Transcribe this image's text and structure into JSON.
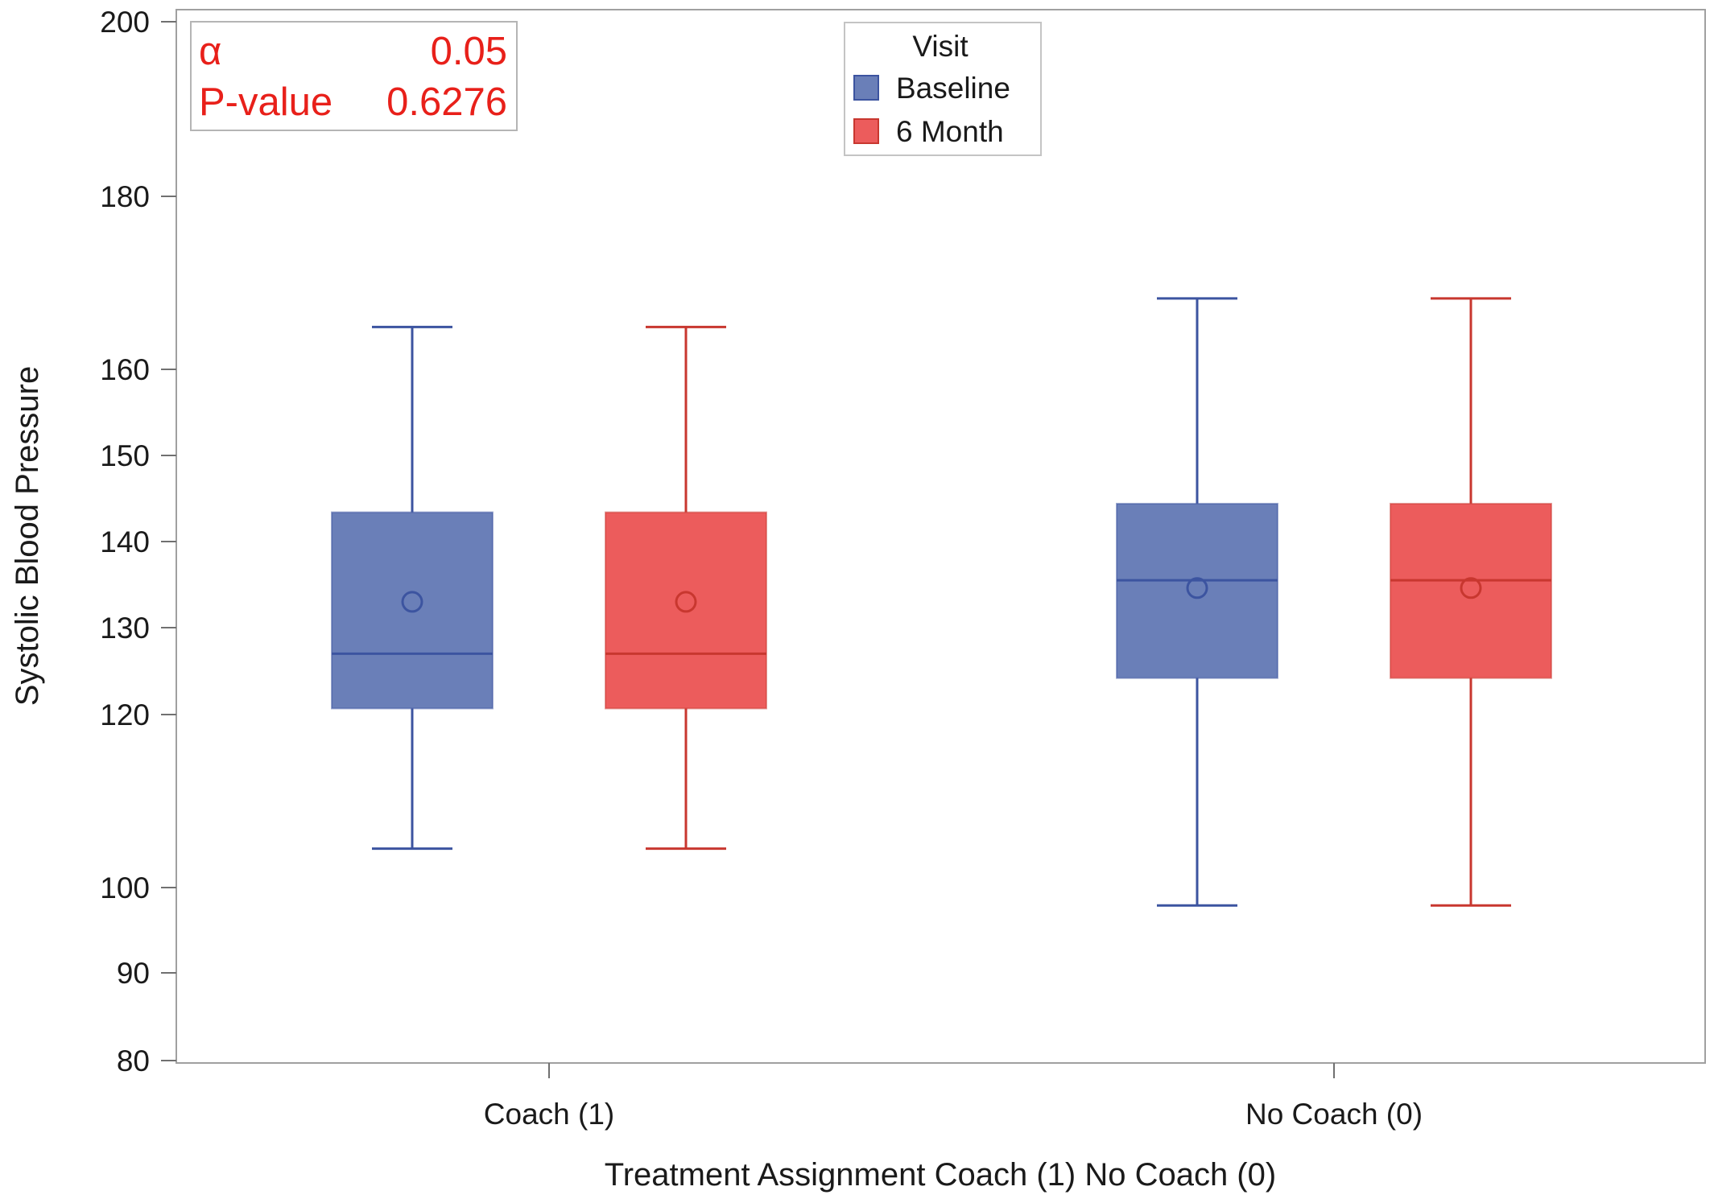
{
  "chart_data": {
    "type": "box",
    "title": "",
    "xlabel": "Treatment Assignment Coach (1) No Coach (0)",
    "ylabel": "Systolic Blood Pressure",
    "y_ticks": [
      80,
      90,
      100,
      120,
      130,
      140,
      150,
      160,
      180,
      200
    ],
    "y_tick_labels": [
      "80",
      "90",
      "100",
      "120",
      "130",
      "140",
      "150",
      "160",
      "180",
      "200"
    ],
    "y_tick_levels": [
      80,
      90,
      100,
      120,
      130,
      140,
      150,
      160,
      180,
      200
    ],
    "ylim": [
      80,
      200
    ],
    "categories": [
      "Coach (1)",
      "No Coach (0)"
    ],
    "legend": {
      "title": "Visit",
      "position": "top-center",
      "entries": [
        {
          "name": "Baseline",
          "color": "#6a7fb8"
        },
        {
          "name": "6 Month",
          "color": "#ec5c5c"
        }
      ]
    },
    "series": [
      {
        "name": "Baseline",
        "fill": "#6a7fb8",
        "stroke": "#3c54a0",
        "boxes": [
          {
            "category": "Coach (1)",
            "whisker_low": 104.5,
            "q1": 120.7,
            "median": 127.0,
            "q3": 143.4,
            "whisker_high": 164.9,
            "mean": 133.0
          },
          {
            "category": "No Coach (0)",
            "whisker_low": 97.9,
            "q1": 124.2,
            "median": 135.5,
            "q3": 144.4,
            "whisker_high": 168.2,
            "mean": 134.6
          }
        ]
      },
      {
        "name": "6 Month",
        "fill": "#ec5c5c",
        "stroke": "#c8372f",
        "boxes": [
          {
            "category": "Coach (1)",
            "whisker_low": 104.5,
            "q1": 120.7,
            "median": 127.0,
            "q3": 143.4,
            "whisker_high": 164.9,
            "mean": 133.0
          },
          {
            "category": "No Coach (0)",
            "whisker_low": 97.9,
            "q1": 124.2,
            "median": 135.5,
            "q3": 144.4,
            "whisker_high": 168.2,
            "mean": 134.6
          }
        ]
      }
    ],
    "annotation": {
      "color": "#e8201a",
      "rows": [
        {
          "label": "α",
          "value": "0.05"
        },
        {
          "label": "P-value",
          "value": "0.6276"
        }
      ]
    }
  }
}
